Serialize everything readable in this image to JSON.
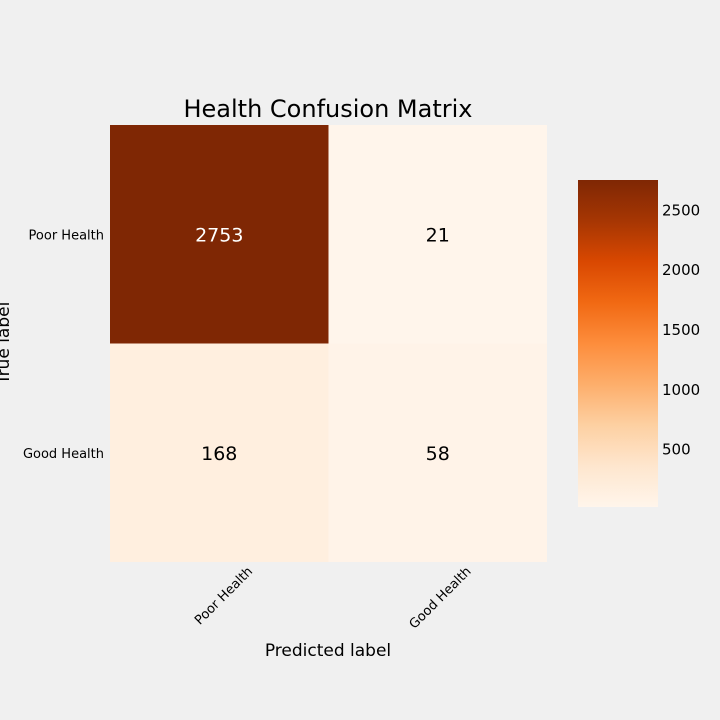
{
  "chart_data": {
    "type": "heatmap",
    "title": "Health Confusion Matrix",
    "xlabel": "Predicted label",
    "ylabel": "True label",
    "x_categories": [
      "Poor Health",
      "Good Health"
    ],
    "y_categories": [
      "Poor Health",
      "Good Health"
    ],
    "values": [
      [
        2753,
        21
      ],
      [
        168,
        58
      ]
    ],
    "colormap": "Oranges",
    "colorbar": {
      "min": 21,
      "max": 2753,
      "ticks": [
        500,
        1000,
        1500,
        2000,
        2500
      ]
    },
    "grid": false
  },
  "colors": {
    "background": "#f0f0f0",
    "text_dark": "#000000",
    "text_light": "#ffffff"
  }
}
